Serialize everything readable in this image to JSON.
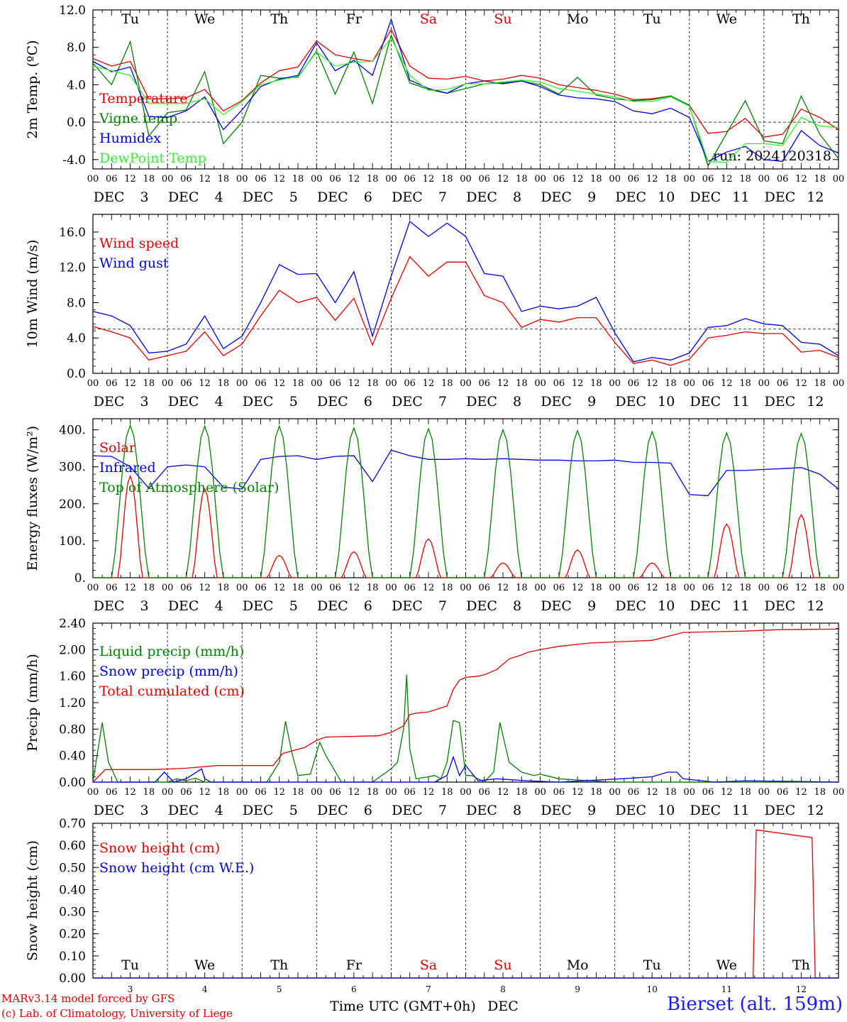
{
  "days": [
    "3",
    "4",
    "5",
    "6",
    "7",
    "8",
    "9",
    "10",
    "11",
    "12"
  ],
  "weekdays": [
    "Tu",
    "We",
    "Th",
    "Fr",
    "Sa",
    "Su",
    "Mo",
    "Tu",
    "We",
    "Th"
  ],
  "weekend_days": [
    "Sa",
    "Su"
  ],
  "hour_ticks": [
    "00",
    "06",
    "12",
    "18"
  ],
  "month_label": "DEC",
  "bottom_weekdays": [
    "Tu",
    "We",
    "Th",
    "Fr",
    "Sa",
    "Su",
    "Mo",
    "Tu",
    "We",
    "Th"
  ],
  "bottom_days": [
    "3",
    "4",
    "5",
    "6",
    "7",
    "8",
    "9",
    "10",
    "11",
    "12"
  ],
  "xlabel": "Time UTC (GMT+0h)",
  "xlabel_month": "DEC",
  "credits": [
    "MARv3.14 model forced by GFS",
    "(c) Lab. of Climatology, University of Liege"
  ],
  "station": "Bierset (alt. 159m)",
  "colors": {
    "red": "#e00000",
    "green": "#008000",
    "blue": "#0000e0",
    "lightgreen": "#33ee33",
    "black": "#000000"
  },
  "chart_data": [
    {
      "type": "line",
      "ylabel": "2m Temp. (ºC)",
      "ylim": [
        -5,
        12
      ],
      "yticks": [
        "12.0",
        "8.0",
        "4.0",
        "0.0",
        "-4.0"
      ],
      "ytick_values": [
        12,
        8,
        4,
        0,
        -4
      ],
      "reference_line": 0,
      "annotation": "run: 2024120318",
      "x_unit": "hours since DEC 3 00 UTC",
      "series": [
        {
          "name": "Temperature",
          "color": "#e00000",
          "x": [
            0,
            6,
            12,
            18,
            24,
            30,
            36,
            42,
            48,
            54,
            60,
            66,
            72,
            78,
            84,
            90,
            96,
            102,
            108,
            114,
            120,
            126,
            132,
            138,
            144,
            150,
            156,
            162,
            168,
            174,
            180,
            186,
            192,
            198,
            204,
            210,
            216,
            222,
            228,
            234,
            240
          ],
          "y": [
            6.8,
            6.0,
            6.5,
            2.5,
            2.5,
            2.6,
            3.5,
            1.2,
            2.3,
            4.2,
            5.5,
            5.9,
            8.7,
            7.2,
            6.8,
            6.5,
            9.9,
            6.0,
            4.7,
            4.6,
            4.9,
            4.4,
            4.6,
            5.0,
            4.7,
            4.0,
            3.7,
            3.4,
            3.0,
            2.4,
            2.5,
            2.8,
            1.8,
            -1.2,
            -1.0,
            0.4,
            -1.6,
            -1.3,
            1.4,
            0.5,
            -0.8
          ]
        },
        {
          "name": "Vigne temp",
          "color": "#008000",
          "x": [
            0,
            6,
            12,
            18,
            24,
            30,
            36,
            42,
            48,
            54,
            60,
            66,
            72,
            78,
            84,
            90,
            96,
            102,
            108,
            114,
            120,
            126,
            132,
            138,
            144,
            150,
            156,
            162,
            168,
            174,
            180,
            186,
            192,
            198,
            204,
            210,
            216,
            222,
            228,
            234,
            240
          ],
          "y": [
            6.3,
            4.0,
            8.6,
            -1.5,
            1.0,
            1.3,
            5.4,
            -2.3,
            0.0,
            5.0,
            4.7,
            4.8,
            7.6,
            3.0,
            7.5,
            2.0,
            9.3,
            4.2,
            3.5,
            3.1,
            3.6,
            4.1,
            4.2,
            4.4,
            4.0,
            3.0,
            4.8,
            2.9,
            2.5,
            2.3,
            2.4,
            2.8,
            1.8,
            -4.7,
            -1.2,
            2.3,
            -2.0,
            -2.3,
            2.8,
            -1.3,
            -3.9
          ]
        },
        {
          "name": "Humidex",
          "color": "#0000e0",
          "x": [
            0,
            6,
            12,
            18,
            24,
            30,
            36,
            42,
            48,
            54,
            60,
            66,
            72,
            78,
            84,
            90,
            96,
            102,
            108,
            114,
            120,
            126,
            132,
            138,
            144,
            150,
            156,
            162,
            168,
            174,
            180,
            186,
            192,
            198,
            204,
            210,
            216,
            222,
            228,
            234,
            240
          ],
          "y": [
            6.5,
            5.4,
            5.9,
            0.6,
            0.5,
            1.2,
            2.7,
            -0.8,
            1.3,
            3.8,
            4.6,
            5.0,
            8.5,
            5.5,
            6.6,
            5.0,
            11.0,
            4.5,
            3.6,
            3.1,
            4.1,
            4.4,
            4.1,
            4.4,
            3.8,
            2.9,
            2.6,
            2.5,
            2.2,
            1.2,
            0.9,
            1.5,
            0.5,
            -4.2,
            -3.2,
            -2.6,
            -4.0,
            -4.2,
            -0.9,
            -2.5,
            -3.3
          ]
        },
        {
          "name": "DewPoint Temp",
          "color": "#33ee33",
          "x": [
            0,
            6,
            12,
            18,
            24,
            30,
            36,
            42,
            48,
            54,
            60,
            66,
            72,
            78,
            84,
            90,
            96,
            102,
            108,
            114,
            120,
            126,
            132,
            138,
            144,
            150,
            156,
            162,
            168,
            174,
            180,
            186,
            192,
            198,
            204,
            210,
            216,
            222,
            228,
            234,
            240
          ],
          "y": [
            6.0,
            5.5,
            5.0,
            2.0,
            2.0,
            2.0,
            2.5,
            0.8,
            2.2,
            4.0,
            4.5,
            4.9,
            7.5,
            6.0,
            6.4,
            6.5,
            9.0,
            5.0,
            3.4,
            3.5,
            4.1,
            4.1,
            4.3,
            4.5,
            4.3,
            3.6,
            3.3,
            3.0,
            2.7,
            2.2,
            2.2,
            2.7,
            1.7,
            -4.2,
            -4.3,
            -2.3,
            -2.3,
            -2.5,
            0.5,
            -0.4,
            -0.6
          ]
        }
      ]
    },
    {
      "type": "line",
      "ylabel": "10m Wind (m/s)",
      "ylim": [
        0,
        18
      ],
      "yticks": [
        "16.0",
        "12.0",
        "8.0",
        "4.0",
        "0.0"
      ],
      "ytick_values": [
        16,
        12,
        8,
        4,
        0
      ],
      "reference_line": 5,
      "x_unit": "hours since DEC 3 00 UTC",
      "series": [
        {
          "name": "Wind speed",
          "color": "#e00000",
          "x": [
            0,
            6,
            12,
            18,
            24,
            30,
            36,
            42,
            48,
            54,
            60,
            66,
            72,
            78,
            84,
            90,
            96,
            102,
            108,
            114,
            120,
            126,
            132,
            138,
            144,
            150,
            156,
            162,
            168,
            174,
            180,
            186,
            192,
            198,
            204,
            210,
            216,
            222,
            228,
            234,
            240
          ],
          "y": [
            5.3,
            4.7,
            4.0,
            1.5,
            2.0,
            2.5,
            4.7,
            2.0,
            3.3,
            6.5,
            9.4,
            8.0,
            8.6,
            6.0,
            8.5,
            3.2,
            8.5,
            13.2,
            11.0,
            12.6,
            12.6,
            8.8,
            8.0,
            5.2,
            6.1,
            5.8,
            6.3,
            6.3,
            3.5,
            1.1,
            1.5,
            0.9,
            1.6,
            4.0,
            4.3,
            4.7,
            4.5,
            4.5,
            2.4,
            2.6,
            1.8
          ]
        },
        {
          "name": "Wind gust",
          "color": "#0000e0",
          "x": [
            0,
            6,
            12,
            18,
            24,
            30,
            36,
            42,
            48,
            54,
            60,
            66,
            72,
            78,
            84,
            90,
            96,
            102,
            108,
            114,
            120,
            126,
            132,
            138,
            144,
            150,
            156,
            162,
            168,
            174,
            180,
            186,
            192,
            198,
            204,
            210,
            216,
            222,
            228,
            234,
            240
          ],
          "y": [
            7.0,
            6.5,
            5.4,
            2.3,
            2.5,
            3.3,
            6.5,
            2.8,
            4.2,
            8.0,
            12.3,
            11.2,
            11.3,
            8.0,
            11.5,
            4.2,
            11.0,
            17.2,
            15.5,
            17.0,
            15.5,
            11.3,
            11.0,
            7.0,
            7.6,
            7.3,
            7.6,
            8.6,
            4.6,
            1.3,
            1.8,
            1.5,
            2.3,
            5.2,
            5.4,
            6.2,
            5.6,
            5.4,
            3.5,
            3.3,
            2.0
          ]
        }
      ]
    },
    {
      "type": "line",
      "ylabel": "Energy fluxes (W/m²)",
      "ylim": [
        0,
        430
      ],
      "yticks": [
        "400.",
        "300.",
        "200.",
        "100.",
        "0."
      ],
      "ytick_values": [
        400,
        300,
        200,
        100,
        0
      ],
      "x_unit": "hours since DEC 3 00 UTC",
      "series": [
        {
          "name": "Solar",
          "color": "#e00000",
          "peaks": [
            275,
            240,
            60,
            70,
            105,
            40,
            75,
            40,
            145,
            170
          ]
        },
        {
          "name": "Infrared",
          "color": "#0000e0",
          "x": [
            0,
            6,
            12,
            18,
            24,
            30,
            36,
            42,
            48,
            54,
            60,
            66,
            72,
            78,
            84,
            90,
            96,
            102,
            108,
            114,
            120,
            126,
            132,
            138,
            144,
            150,
            156,
            162,
            168,
            174,
            180,
            186,
            192,
            198,
            204,
            210,
            216,
            222,
            228,
            234,
            240
          ],
          "y": [
            330,
            328,
            300,
            242,
            300,
            305,
            300,
            245,
            240,
            320,
            328,
            330,
            320,
            328,
            330,
            260,
            345,
            330,
            320,
            320,
            322,
            320,
            322,
            320,
            318,
            318,
            316,
            316,
            318,
            312,
            312,
            310,
            225,
            222,
            290,
            290,
            293,
            295,
            298,
            280,
            240
          ]
        },
        {
          "name": "Top of Atmosphere (Solar)",
          "color": "#008000",
          "peaks": [
            412,
            410,
            410,
            405,
            403,
            400,
            398,
            395,
            392,
            390
          ]
        }
      ]
    },
    {
      "type": "line",
      "ylabel": "Precip (mm/h)",
      "ylim": [
        0,
        2.4
      ],
      "yticks": [
        "2.40",
        "2.00",
        "1.60",
        "1.20",
        "0.80",
        "0.40",
        "0.00"
      ],
      "ytick_values": [
        2.4,
        2.0,
        1.6,
        1.2,
        0.8,
        0.4,
        0.0
      ],
      "x_unit": "hours since DEC 3 00 UTC",
      "series": [
        {
          "name": "Liquid precip (mm/h)",
          "color": "#008000",
          "x": [
            0,
            2,
            3,
            5,
            8,
            24,
            27,
            30,
            33,
            36,
            48,
            56,
            60,
            62,
            64,
            66,
            70,
            73,
            75,
            80,
            90,
            96,
            98,
            100,
            101,
            102,
            104,
            108,
            110,
            112,
            114,
            116,
            118,
            120,
            122,
            124,
            126,
            129,
            131,
            134,
            138,
            142,
            144,
            150,
            160,
            168,
            180,
            190,
            200,
            220,
            240
          ],
          "y": [
            0.0,
            0.6,
            0.9,
            0.3,
            0.0,
            0.0,
            0.05,
            0.02,
            0.06,
            0.0,
            0.0,
            0.0,
            0.3,
            0.92,
            0.45,
            0.1,
            0.12,
            0.6,
            0.4,
            0.0,
            0.0,
            0.2,
            0.3,
            0.8,
            1.62,
            0.5,
            0.05,
            0.08,
            0.1,
            0.05,
            0.3,
            0.93,
            0.9,
            0.1,
            0.1,
            0.05,
            0.0,
            0.15,
            0.9,
            0.3,
            0.15,
            0.1,
            0.12,
            0.05,
            0.02,
            0.0,
            0.0,
            0.0,
            0.0,
            0.0,
            0.0
          ]
        },
        {
          "name": "Snow precip (mm/h)",
          "color": "#0000e0",
          "x": [
            0,
            20,
            23,
            26,
            30,
            35,
            36,
            38,
            42,
            46,
            50,
            70,
            80,
            100,
            110,
            114,
            116,
            118,
            120,
            124,
            130,
            140,
            150,
            170,
            180,
            185,
            188,
            190,
            200,
            210,
            240
          ],
          "y": [
            0.0,
            0.0,
            0.15,
            0.0,
            0.05,
            0.2,
            0.05,
            0.0,
            0.0,
            0.0,
            0.0,
            0.0,
            0.0,
            0.0,
            0.0,
            0.1,
            0.38,
            0.1,
            0.25,
            0.02,
            0.05,
            0.02,
            0.0,
            0.05,
            0.08,
            0.15,
            0.15,
            0.05,
            0.0,
            0.02,
            0.0
          ]
        },
        {
          "name": "Total cumulated (cm)",
          "color": "#e00000",
          "x": [
            0,
            4,
            20,
            30,
            40,
            58,
            61,
            64,
            68,
            72,
            75,
            92,
            96,
            100,
            102,
            104,
            108,
            114,
            116,
            118,
            120,
            124,
            126,
            130,
            134,
            138,
            140,
            144,
            150,
            160,
            170,
            180,
            185,
            190,
            200,
            210,
            220,
            240
          ],
          "y": [
            0.0,
            0.19,
            0.19,
            0.21,
            0.25,
            0.25,
            0.43,
            0.47,
            0.52,
            0.63,
            0.68,
            0.7,
            0.75,
            0.85,
            1.02,
            1.04,
            1.06,
            1.15,
            1.4,
            1.54,
            1.58,
            1.6,
            1.62,
            1.7,
            1.86,
            1.92,
            1.96,
            2.0,
            2.05,
            2.1,
            2.12,
            2.14,
            2.2,
            2.26,
            2.27,
            2.28,
            2.3,
            2.31
          ]
        }
      ]
    },
    {
      "type": "line",
      "ylabel": "Snow height (cm)",
      "ylim": [
        0,
        0.7
      ],
      "yticks": [
        "0.70",
        "0.60",
        "0.50",
        "0.40",
        "0.30",
        "0.20",
        "0.10",
        "0.00"
      ],
      "ytick_values": [
        0.7,
        0.6,
        0.5,
        0.4,
        0.3,
        0.2,
        0.1,
        0.0
      ],
      "x_unit": "hours since DEC 3 00 UTC",
      "series": [
        {
          "name": "Snow height (cm)",
          "color": "#e00000",
          "x": [
            0,
            212.5,
            213.5,
            231.5,
            232.5,
            240
          ],
          "y": [
            0,
            0,
            0.67,
            0.635,
            0,
            0
          ]
        },
        {
          "name": "Snow height (cm W.E.)",
          "color": "#0000e0",
          "x": [
            0,
            240
          ],
          "y": [
            0,
            0
          ]
        }
      ]
    }
  ]
}
